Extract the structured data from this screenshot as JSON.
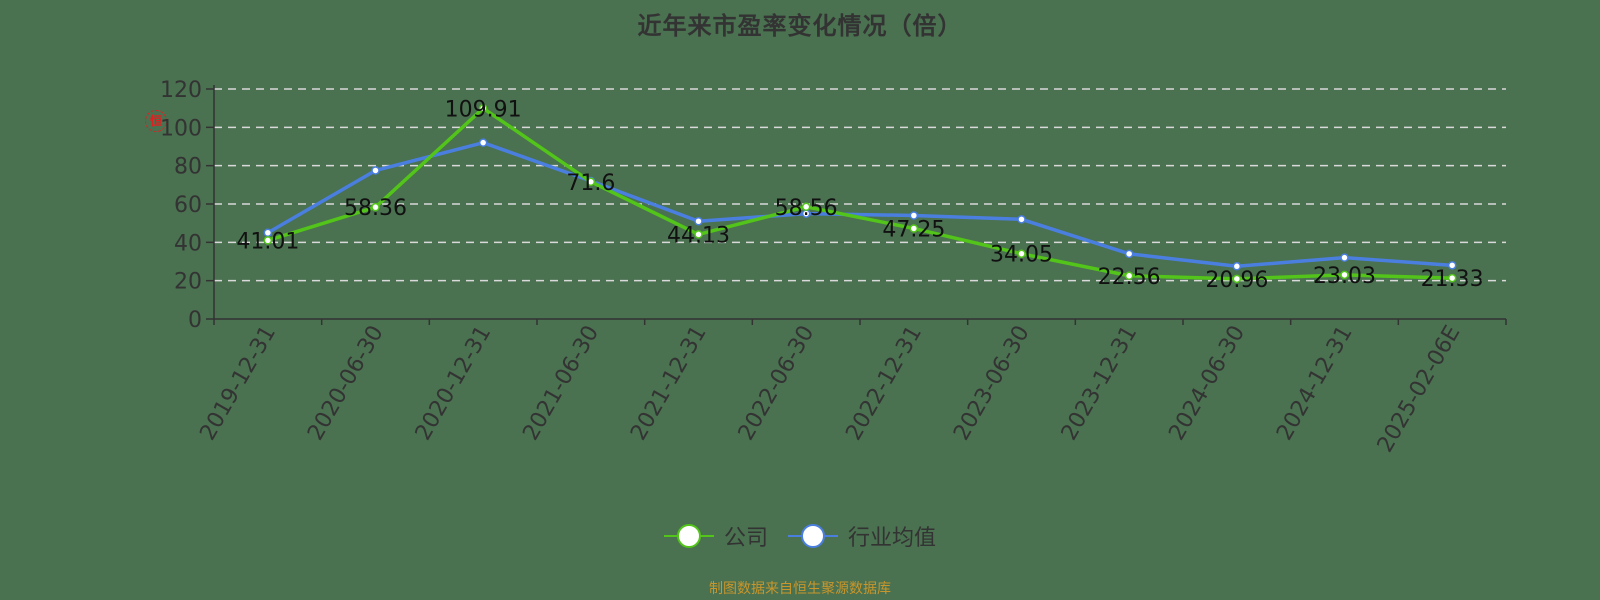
{
  "title": "近年来市盈率变化情况（倍）",
  "source_note": "制图数据来自恒生聚源数据库",
  "watermark_glyph": "恒",
  "legend": [
    {
      "label": "公司",
      "color": "#52c41a"
    },
    {
      "label": "行业均值",
      "color": "#4a7fe0"
    }
  ],
  "colors": {
    "background": "#4a7150",
    "company": "#52c41a",
    "industry": "#4a7fe0",
    "grid": "#d9d9d9",
    "axis": "#333333",
    "source_text": "#c8962c"
  },
  "chart_data": {
    "type": "line",
    "title": "近年来市盈率变化情况（倍）",
    "xlabel": "",
    "ylabel": "",
    "ylim": [
      0,
      120
    ],
    "yticks": [
      0,
      20,
      40,
      60,
      80,
      100,
      120
    ],
    "grid": true,
    "legend_position": "bottom",
    "categories": [
      "2019-12-31",
      "2020-06-30",
      "2020-12-31",
      "2021-06-30",
      "2021-12-31",
      "2022-06-30",
      "2022-12-31",
      "2023-06-30",
      "2023-12-31",
      "2024-06-30",
      "2024-12-31",
      "2025-02-06E"
    ],
    "series": [
      {
        "name": "公司",
        "values": [
          41.01,
          58.36,
          109.91,
          71.6,
          44.13,
          58.56,
          47.25,
          34.05,
          22.56,
          20.96,
          23.03,
          21.33
        ],
        "labels": [
          "41.01",
          "58.36",
          "109.91",
          "71.6",
          "44.13",
          "58.56",
          "47.25",
          "34.05",
          "22.56",
          "20.96",
          "23.03",
          "21.33"
        ]
      },
      {
        "name": "行业均值",
        "values": [
          45,
          77.5,
          92,
          72,
          51,
          55,
          54,
          52,
          34,
          27.5,
          32,
          28
        ]
      }
    ]
  }
}
